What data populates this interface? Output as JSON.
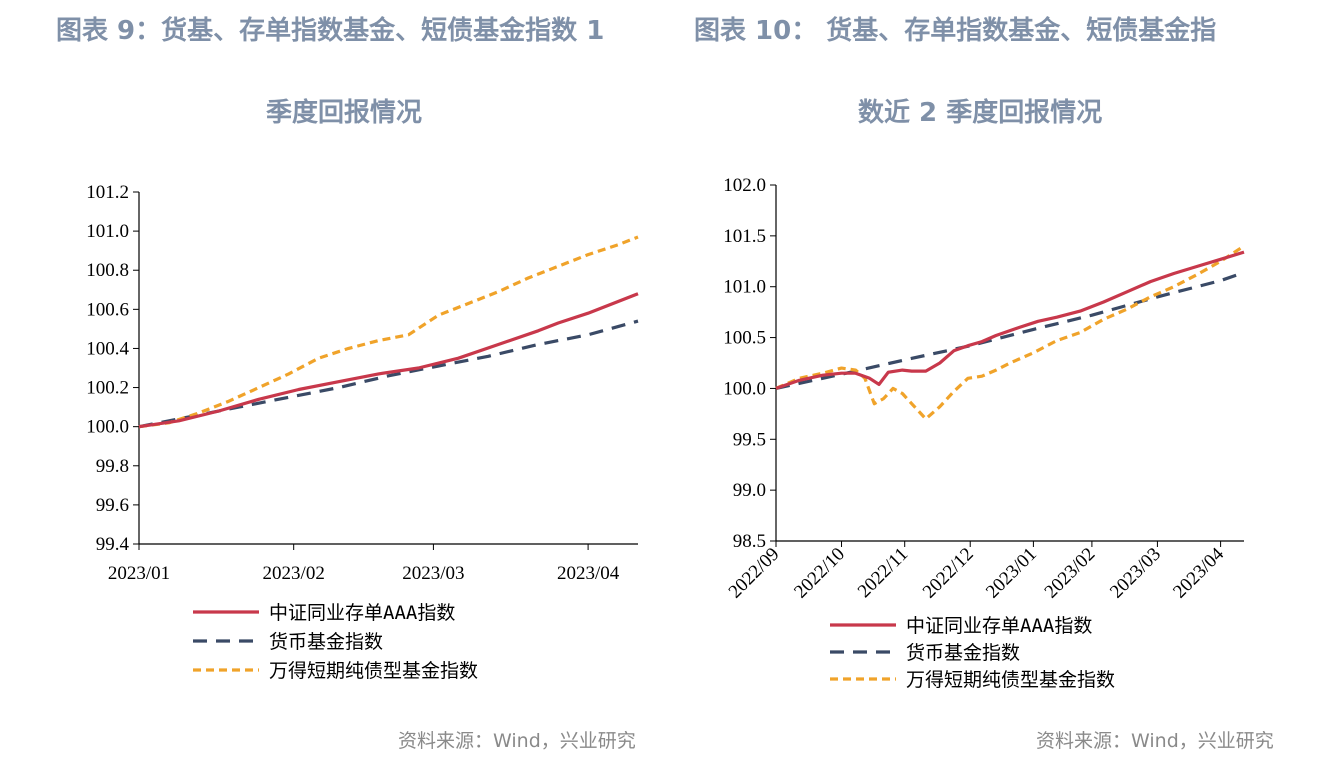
{
  "left": {
    "title_line1": "图表 9：货基、存单指数基金、短债基金指数 1",
    "title_line2": "季度回报情况",
    "source": "资料来源：Wind，兴业研究"
  },
  "right": {
    "title_line1": "图表 10：    货基、存单指数基金、短债基金指",
    "title_line2": "数近 2 季度回报情况",
    "source": "资料来源：Wind，兴业研究"
  },
  "colors": {
    "cd_index": "#c8384b",
    "money_fund": "#3a4a66",
    "short_bond": "#f0a32a",
    "title": "#7f90a8"
  },
  "chart_data": [
    {
      "type": "line",
      "ylim": [
        99.4,
        101.2
      ],
      "yticks": [
        "101.2",
        "101.0",
        "100.8",
        "100.6",
        "100.4",
        "100.2",
        "100.0",
        "99.8",
        "99.6",
        "99.4"
      ],
      "xlim": [
        0,
        100
      ],
      "xticks": [
        {
          "label": "2023/01",
          "x": 0
        },
        {
          "label": "2023/02",
          "x": 31
        },
        {
          "label": "2023/03",
          "x": 59
        },
        {
          "label": "2023/04",
          "x": 90
        }
      ],
      "legend": [
        "中证同业存单AAA指数",
        "货币基金指数",
        "万得短期纯债型基金指数"
      ],
      "series": [
        {
          "name": "中证同业存单AAA指数",
          "color": "#c8384b",
          "dash": "",
          "x": [
            0,
            8,
            16,
            24,
            32,
            40,
            48,
            56,
            64,
            72,
            80,
            84,
            90,
            100
          ],
          "y": [
            100.0,
            100.03,
            100.08,
            100.14,
            100.19,
            100.23,
            100.27,
            100.3,
            100.35,
            100.42,
            100.49,
            100.53,
            100.58,
            100.68
          ]
        },
        {
          "name": "货币基金指数",
          "color": "#3a4a66",
          "dash": "14 9",
          "x": [
            0,
            10,
            20,
            30,
            40,
            50,
            60,
            70,
            80,
            90,
            100
          ],
          "y": [
            100.0,
            100.05,
            100.1,
            100.15,
            100.2,
            100.26,
            100.31,
            100.36,
            100.42,
            100.47,
            100.54
          ]
        },
        {
          "name": "万得短期纯债型基金指数",
          "color": "#f0a32a",
          "dash": "8 5",
          "x": [
            0,
            6,
            12,
            18,
            24,
            30,
            36,
            42,
            48,
            54,
            60,
            66,
            72,
            78,
            84,
            90,
            96,
            100
          ],
          "y": [
            100.0,
            100.02,
            100.07,
            100.13,
            100.2,
            100.27,
            100.35,
            100.4,
            100.44,
            100.47,
            100.57,
            100.63,
            100.69,
            100.76,
            100.82,
            100.88,
            100.93,
            100.97
          ]
        }
      ]
    },
    {
      "type": "line",
      "ylim": [
        98.5,
        102.0
      ],
      "yticks": [
        "102.0",
        "101.5",
        "101.0",
        "100.5",
        "100.0",
        "99.5",
        "99.0",
        "98.5"
      ],
      "xlim": [
        0,
        100
      ],
      "xticks": [
        {
          "label": "2022/09",
          "x": 0
        },
        {
          "label": "2022/10",
          "x": 14
        },
        {
          "label": "2022/11",
          "x": 27.5
        },
        {
          "label": "2022/12",
          "x": 41.5
        },
        {
          "label": "2023/01",
          "x": 55
        },
        {
          "label": "2023/02",
          "x": 67.5
        },
        {
          "label": "2023/03",
          "x": 81.5
        },
        {
          "label": "2023/04",
          "x": 95
        }
      ],
      "legend": [
        "中证同业存单AAA指数",
        "货币基金指数",
        "万得短期纯债型基金指数"
      ],
      "series": [
        {
          "name": "中证同业存单AAA指数",
          "color": "#c8384b",
          "dash": "",
          "x": [
            0,
            5,
            10,
            14,
            17,
            20,
            22,
            24,
            27,
            29,
            32,
            35,
            38,
            41,
            44,
            47,
            52,
            56,
            60,
            65,
            70,
            75,
            80,
            85,
            90,
            95,
            100
          ],
          "y": [
            100.0,
            100.08,
            100.13,
            100.15,
            100.15,
            100.1,
            100.04,
            100.16,
            100.18,
            100.17,
            100.17,
            100.25,
            100.37,
            100.42,
            100.46,
            100.52,
            100.6,
            100.66,
            100.7,
            100.76,
            100.85,
            100.95,
            101.05,
            101.13,
            101.2,
            101.27,
            101.34
          ]
        },
        {
          "name": "货币基金指数",
          "color": "#3a4a66",
          "dash": "14 9",
          "x": [
            0,
            14,
            27.5,
            41.5,
            55,
            67.5,
            81.5,
            95,
            100
          ],
          "y": [
            100.0,
            100.14,
            100.28,
            100.42,
            100.58,
            100.72,
            100.9,
            101.06,
            101.14
          ]
        },
        {
          "name": "万得短期纯债型基金指数",
          "color": "#f0a32a",
          "dash": "8 5",
          "x": [
            0,
            5,
            10,
            14,
            17,
            19,
            21,
            23,
            25,
            27,
            29,
            32,
            35,
            38,
            41,
            44,
            47,
            50,
            55,
            60,
            65,
            70,
            75,
            80,
            85,
            90,
            95,
            100
          ],
          "y": [
            100.0,
            100.1,
            100.15,
            100.2,
            100.18,
            100.1,
            99.85,
            99.9,
            100.0,
            99.95,
            99.85,
            99.7,
            99.82,
            99.97,
            100.1,
            100.12,
            100.18,
            100.25,
            100.35,
            100.47,
            100.55,
            100.68,
            100.78,
            100.9,
            101.0,
            101.12,
            101.25,
            101.4
          ]
        }
      ]
    }
  ]
}
